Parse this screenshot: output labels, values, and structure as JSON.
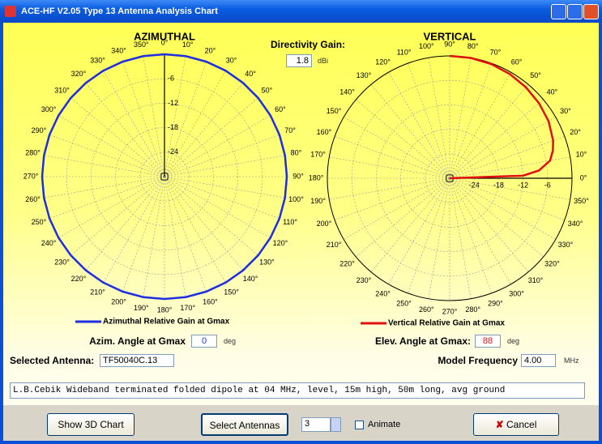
{
  "window": {
    "title": "ACE-HF V2.05   Type 13 Antenna Analysis Chart"
  },
  "charts": [
    {
      "type": "polar",
      "title": "AZIMUTHAL",
      "zero": "top",
      "direction": "clockwise",
      "rlim": [
        -30,
        0
      ],
      "rticks": [
        -24,
        -18,
        -12,
        -6
      ],
      "angle_ticks": [
        {
          "value": 0,
          "label": "0°"
        },
        {
          "value": 10,
          "label": "10°"
        },
        {
          "value": 20,
          "label": "20°"
        },
        {
          "value": 30,
          "label": "30°"
        },
        {
          "value": 40,
          "label": "40°"
        },
        {
          "value": 50,
          "label": "50°"
        },
        {
          "value": 60,
          "label": "60°"
        },
        {
          "value": 70,
          "label": "70°"
        },
        {
          "value": 80,
          "label": "80°"
        },
        {
          "value": 90,
          "label": "90°"
        },
        {
          "value": 100,
          "label": "100°"
        },
        {
          "value": 110,
          "label": "110°"
        },
        {
          "value": 120,
          "label": "120°"
        },
        {
          "value": 130,
          "label": "130°"
        },
        {
          "value": 140,
          "label": "140°"
        },
        {
          "value": 150,
          "label": "150°"
        },
        {
          "value": 160,
          "label": "160°"
        },
        {
          "value": 170,
          "label": "170°"
        },
        {
          "value": 180,
          "label": "180°"
        },
        {
          "value": 190,
          "label": "190°"
        },
        {
          "value": 200,
          "label": "200°"
        },
        {
          "value": 210,
          "label": "210°"
        },
        {
          "value": 220,
          "label": "220°"
        },
        {
          "value": 230,
          "label": "230°"
        },
        {
          "value": 240,
          "label": "240°"
        },
        {
          "value": 250,
          "label": "250°"
        },
        {
          "value": 260,
          "label": "260°"
        },
        {
          "value": 270,
          "label": "270°"
        },
        {
          "value": 280,
          "label": "280°"
        },
        {
          "value": 290,
          "label": "290°"
        },
        {
          "value": 300,
          "label": "300°"
        },
        {
          "value": 310,
          "label": "310°"
        },
        {
          "value": 320,
          "label": "320°"
        },
        {
          "value": 330,
          "label": "330°"
        },
        {
          "value": 340,
          "label": "340°"
        },
        {
          "value": 350,
          "label": "350°"
        }
      ],
      "series": [
        {
          "name": "Azimuthal Relative Gain at Gmax",
          "color": "#1f2fe0",
          "angles": [
            0,
            10,
            20,
            30,
            40,
            50,
            60,
            70,
            80,
            90,
            100,
            110,
            120,
            130,
            140,
            150,
            160,
            170,
            180,
            190,
            200,
            210,
            220,
            230,
            240,
            250,
            260,
            270,
            280,
            290,
            300,
            310,
            320,
            330,
            340,
            350,
            360
          ],
          "values": [
            0,
            0,
            0,
            0,
            0,
            0,
            0,
            0,
            0,
            0,
            0,
            0,
            0,
            0,
            0,
            0,
            0,
            0,
            0,
            0,
            0,
            0,
            0,
            0,
            0,
            0,
            0,
            0,
            0,
            0,
            0,
            0,
            0,
            0,
            0,
            0,
            0
          ]
        }
      ]
    },
    {
      "type": "polar",
      "title": "VERTICAL",
      "zero": "right",
      "direction": "counterclockwise",
      "rlim": [
        -30,
        0
      ],
      "rticks": [
        -24,
        -18,
        -12,
        -6
      ],
      "angle_ticks": [
        {
          "value": 0,
          "label": "0°"
        },
        {
          "value": 10,
          "label": "10°"
        },
        {
          "value": 20,
          "label": "20°"
        },
        {
          "value": 30,
          "label": "30°"
        },
        {
          "value": 40,
          "label": "40°"
        },
        {
          "value": 50,
          "label": "50°"
        },
        {
          "value": 60,
          "label": "60°"
        },
        {
          "value": 70,
          "label": "70°"
        },
        {
          "value": 80,
          "label": "80°"
        },
        {
          "value": 90,
          "label": "90°"
        },
        {
          "value": 100,
          "label": "100°"
        },
        {
          "value": 110,
          "label": "110°"
        },
        {
          "value": 120,
          "label": "120°"
        },
        {
          "value": 130,
          "label": "130°"
        },
        {
          "value": 140,
          "label": "140°"
        },
        {
          "value": 150,
          "label": "150°"
        },
        {
          "value": 160,
          "label": "160°"
        },
        {
          "value": 170,
          "label": "170°"
        },
        {
          "value": 180,
          "label": "180°"
        },
        {
          "value": 190,
          "label": "190°"
        },
        {
          "value": 200,
          "label": "200°"
        },
        {
          "value": 210,
          "label": "210°"
        },
        {
          "value": 220,
          "label": "220°"
        },
        {
          "value": 230,
          "label": "230°"
        },
        {
          "value": 240,
          "label": "240°"
        },
        {
          "value": 250,
          "label": "250°"
        },
        {
          "value": 260,
          "label": "260°"
        },
        {
          "value": 270,
          "label": "270°"
        },
        {
          "value": 280,
          "label": "280°"
        },
        {
          "value": 290,
          "label": "290°"
        },
        {
          "value": 300,
          "label": "300°"
        },
        {
          "value": 310,
          "label": "310°"
        },
        {
          "value": 320,
          "label": "320°"
        },
        {
          "value": 330,
          "label": "330°"
        },
        {
          "value": 340,
          "label": "340°"
        },
        {
          "value": 350,
          "label": "350°"
        }
      ],
      "series": [
        {
          "name": "Vertical Relative Gain at Gmax",
          "color": "#e01010",
          "angles": [
            0,
            2,
            5,
            10,
            15,
            20,
            30,
            40,
            50,
            60,
            70,
            80,
            90
          ],
          "values": [
            -30,
            -12,
            -8,
            -5,
            -3.8,
            -3,
            -2,
            -1.4,
            -0.9,
            -0.5,
            -0.2,
            -0.05,
            0
          ]
        }
      ]
    }
  ],
  "controls": {
    "directivity_label": "Directivity Gain:",
    "directivity_value": "1.8",
    "directivity_unit": "dBi",
    "azim_label": "Azim. Angle at Gmax",
    "azim_value": "0",
    "azim_unit": "deg",
    "elev_label": "Elev. Angle at Gmax:",
    "elev_value": "88",
    "elev_unit": "deg",
    "antenna_label": "Selected Antenna:",
    "antenna_value": "TF50040C.13",
    "freq_label": "Model Frequency",
    "freq_value": "4.00",
    "freq_unit": "MHz",
    "description": "L.B.Cebik Wideband terminated folded dipole at 04 MHz, level, 15m high, 50m long, avg ground",
    "show3d": "Show 3D Chart",
    "select": "Select Antennas",
    "spin_value": "3",
    "animate": "Animate",
    "cancel": "Cancel"
  }
}
